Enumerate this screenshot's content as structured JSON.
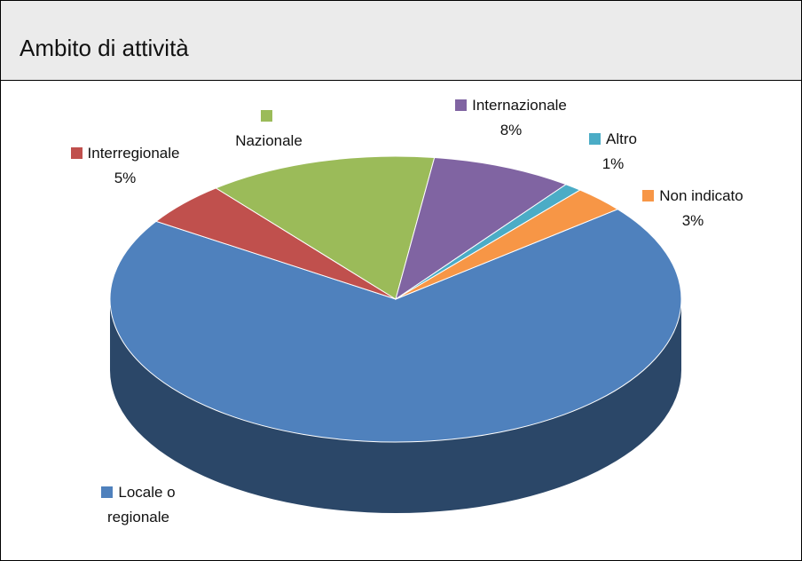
{
  "chart_data": {
    "type": "pie3d",
    "title": "Ambito di attività",
    "categories": [
      "Locale o regionale",
      "Interregionale",
      "Nazionale",
      "Internazionale",
      "Altro",
      "Non indicato"
    ],
    "values": [
      70,
      5,
      13,
      8,
      1,
      3
    ],
    "value_labels": [
      null,
      "5%",
      null,
      "8%",
      "1%",
      "3%"
    ],
    "colors": [
      "#4f81bd",
      "#c0504d",
      "#9bbb59",
      "#8064a2",
      "#4bacc6",
      "#f79646"
    ]
  }
}
